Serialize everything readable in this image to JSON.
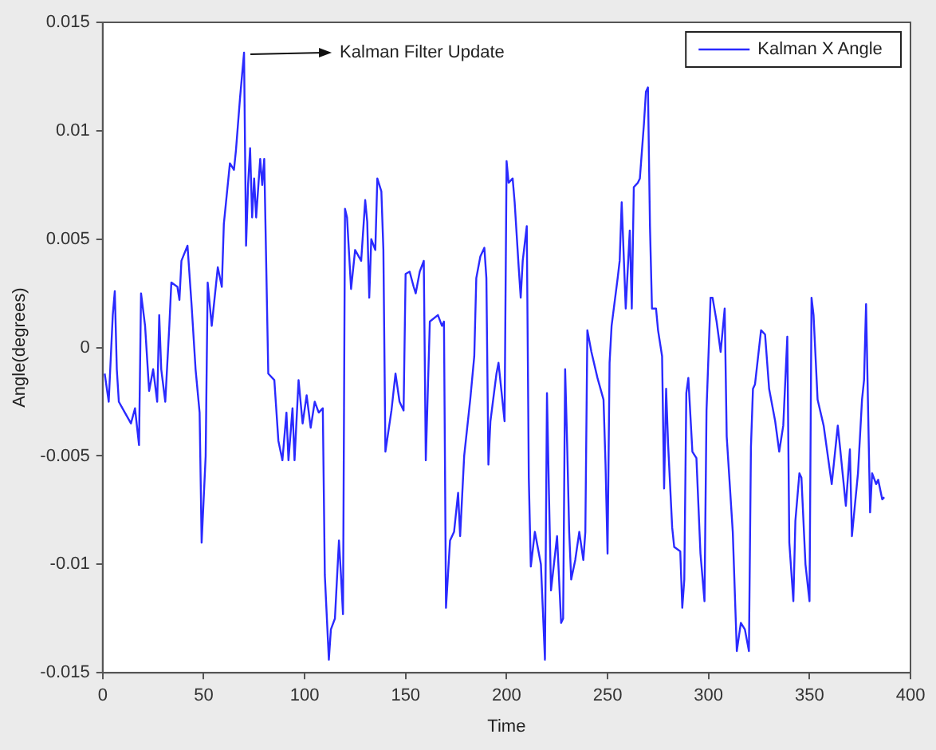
{
  "chart_data": {
    "type": "line",
    "xlabel": "Time",
    "ylabel": "Angle(degrees)",
    "legend": "top right",
    "grid": false,
    "marker": "none",
    "line_style": "solid",
    "xlim": [
      0,
      400
    ],
    "xticks": [
      0,
      50,
      100,
      150,
      200,
      250,
      300,
      350,
      400
    ],
    "ylim": [
      -0.015,
      0.015
    ],
    "yticks": [
      -0.015,
      -0.01,
      -0.005,
      0,
      0.005,
      0.01,
      0.015
    ],
    "annotations": [
      {
        "text": "Kalman Filter Update",
        "x": 70,
        "y": 0.0136
      }
    ],
    "x": [
      1,
      3,
      5,
      6,
      7,
      8,
      11,
      14,
      16,
      18,
      19,
      21,
      23,
      25,
      27,
      28,
      29,
      31,
      33,
      34,
      37,
      38,
      39,
      42,
      44,
      46,
      48,
      49,
      51,
      52,
      54,
      57,
      59,
      60,
      63,
      65,
      66,
      68,
      70,
      71,
      72,
      73,
      74,
      75,
      76,
      78,
      79,
      80,
      82,
      85,
      87,
      89,
      91,
      92,
      94,
      95,
      97,
      99,
      101,
      103,
      105,
      107,
      109,
      110,
      112,
      113,
      115,
      117,
      118,
      119,
      120,
      121,
      123,
      125,
      128,
      130,
      131,
      132,
      133,
      135,
      136,
      138,
      139,
      140,
      143,
      145,
      147,
      149,
      150,
      152,
      154,
      155,
      157,
      159,
      160,
      162,
      166,
      168,
      169,
      170,
      172,
      174,
      176,
      177,
      179,
      182,
      184,
      185,
      187,
      189,
      190,
      191,
      192,
      195,
      196,
      199,
      200,
      201,
      203,
      204,
      206,
      207,
      208,
      210,
      211,
      212,
      214,
      217,
      219,
      220,
      221,
      222,
      225,
      227,
      228,
      229,
      230,
      231,
      232,
      234,
      236,
      238,
      239,
      240,
      242,
      245,
      248,
      249,
      250,
      251,
      252,
      255,
      256,
      257,
      259,
      261,
      262,
      263,
      265,
      266,
      268,
      269,
      270,
      271,
      272,
      274,
      275,
      277,
      278,
      279,
      280,
      282,
      283,
      286,
      287,
      288,
      289,
      290,
      292,
      294,
      296,
      298,
      299,
      301,
      302,
      304,
      306,
      308,
      309,
      312,
      314,
      316,
      318,
      320,
      321,
      322,
      323,
      326,
      328,
      330,
      333,
      335,
      337,
      339,
      340,
      342,
      343,
      345,
      346,
      348,
      350,
      351,
      352,
      354,
      357,
      361,
      364,
      365,
      368,
      370,
      371,
      374,
      376,
      377,
      378,
      380,
      381,
      383,
      384,
      386,
      387
    ],
    "series": [
      {
        "name": "Kalman X Angle",
        "color": "#2a2aff",
        "values": [
          -0.0012,
          -0.0025,
          0.0015,
          0.0026,
          -0.001,
          -0.0025,
          -0.003,
          -0.0035,
          -0.0028,
          -0.0045,
          0.0025,
          0.001,
          -0.002,
          -0.001,
          -0.0025,
          0.0015,
          -0.001,
          -0.0025,
          0.001,
          0.003,
          0.0028,
          0.0022,
          0.004,
          0.0047,
          0.002,
          -0.001,
          -0.003,
          -0.009,
          -0.005,
          0.003,
          0.001,
          0.0037,
          0.0028,
          0.0057,
          0.0085,
          0.0082,
          0.0091,
          0.0115,
          0.0136,
          0.0047,
          0.0075,
          0.0092,
          0.006,
          0.0078,
          0.006,
          0.0087,
          0.0075,
          0.0087,
          -0.0012,
          -0.0015,
          -0.0043,
          -0.0052,
          -0.003,
          -0.0052,
          -0.0028,
          -0.0052,
          -0.0015,
          -0.0035,
          -0.0022,
          -0.0037,
          -0.0025,
          -0.003,
          -0.0028,
          -0.0105,
          -0.0144,
          -0.013,
          -0.0125,
          -0.0089,
          -0.0105,
          -0.0123,
          0.0064,
          0.006,
          0.0027,
          0.0045,
          0.004,
          0.0068,
          0.0058,
          0.0023,
          0.005,
          0.0045,
          0.0078,
          0.0072,
          0.0045,
          -0.0048,
          -0.0029,
          -0.0012,
          -0.0025,
          -0.0029,
          0.0034,
          0.0035,
          0.0028,
          0.0025,
          0.0035,
          0.004,
          -0.0052,
          0.0012,
          0.0015,
          0.001,
          0.0012,
          -0.012,
          -0.0089,
          -0.0085,
          -0.0067,
          -0.0087,
          -0.005,
          -0.0024,
          -0.0004,
          0.0032,
          0.0042,
          0.0046,
          0.0032,
          -0.0054,
          -0.0034,
          -0.0012,
          -0.0007,
          -0.0034,
          0.0086,
          0.0076,
          0.0078,
          0.0067,
          0.0037,
          0.0023,
          0.004,
          0.0056,
          -0.006,
          -0.0101,
          -0.0085,
          -0.01,
          -0.0144,
          -0.0021,
          -0.0068,
          -0.0112,
          -0.0087,
          -0.0127,
          -0.0125,
          -0.001,
          -0.0045,
          -0.0085,
          -0.0107,
          -0.0098,
          -0.0085,
          -0.0098,
          -0.0085,
          0.0008,
          -0.0002,
          -0.0014,
          -0.0024,
          -0.0054,
          -0.0095,
          -0.0007,
          0.001,
          0.0032,
          0.004,
          0.0067,
          0.0018,
          0.0054,
          0.0018,
          0.0074,
          0.0076,
          0.0078,
          0.0103,
          0.0118,
          0.012,
          0.0056,
          0.0018,
          0.0018,
          0.0008,
          -0.0004,
          -0.0065,
          -0.0019,
          -0.0045,
          -0.0083,
          -0.0092,
          -0.0094,
          -0.012,
          -0.0107,
          -0.0021,
          -0.0014,
          -0.0048,
          -0.0051,
          -0.0095,
          -0.0117,
          -0.0029,
          0.0023,
          0.0023,
          0.0012,
          -0.0002,
          0.0018,
          -0.0041,
          -0.0085,
          -0.014,
          -0.0127,
          -0.013,
          -0.014,
          -0.0046,
          -0.0019,
          -0.0017,
          0.0008,
          0.0006,
          -0.0019,
          -0.0034,
          -0.0048,
          -0.0036,
          0.0005,
          -0.009,
          -0.0117,
          -0.008,
          -0.0058,
          -0.006,
          -0.01,
          -0.0117,
          0.0023,
          0.0015,
          -0.0024,
          -0.0036,
          -0.0063,
          -0.0036,
          -0.0045,
          -0.0073,
          -0.0047,
          -0.0087,
          -0.0058,
          -0.0024,
          -0.0015,
          0.002,
          -0.0076,
          -0.0058,
          -0.0063,
          -0.0061,
          -0.007,
          -0.0069
        ]
      }
    ]
  }
}
